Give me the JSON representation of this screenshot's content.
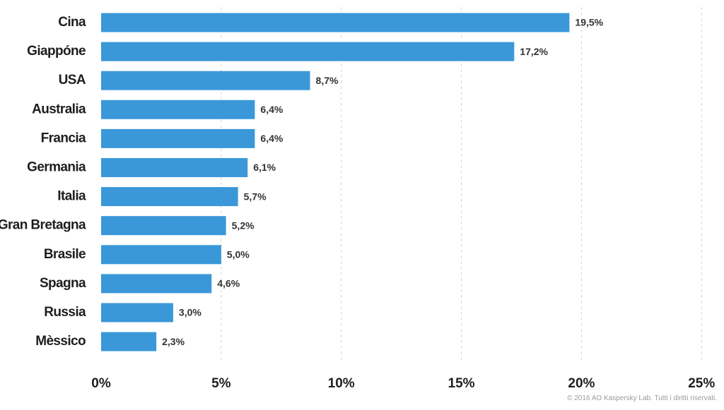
{
  "chart_data": {
    "type": "bar",
    "orientation": "horizontal",
    "categories": [
      "Cina",
      "Giappóne",
      "USA",
      "Australia",
      "Francia",
      "Germania",
      "Italia",
      "Gran Bretagna",
      "Brasile",
      "Spagna",
      "Russia",
      "Mèssico"
    ],
    "values": [
      19.5,
      17.2,
      8.7,
      6.4,
      6.4,
      6.1,
      5.7,
      5.2,
      5.0,
      4.6,
      3.0,
      2.3
    ],
    "value_labels": [
      "19,5%",
      "17,2%",
      "8,7%",
      "6,4%",
      "6,4%",
      "6,1%",
      "5,7%",
      "5,2%",
      "5,0%",
      "4,6%",
      "3,0%",
      "2,3%"
    ],
    "x_ticks": [
      0,
      5,
      10,
      15,
      20,
      25
    ],
    "x_tick_labels": [
      "0%",
      "5%",
      "10%",
      "15%",
      "20%",
      "25%"
    ],
    "xlim": [
      0,
      25
    ],
    "grid": true,
    "legend": false,
    "bar_color": "#3a98d9"
  },
  "footer": {
    "copyright": "© 2016 AO Kaspersky Lab. Tutti i diritti riservati."
  }
}
